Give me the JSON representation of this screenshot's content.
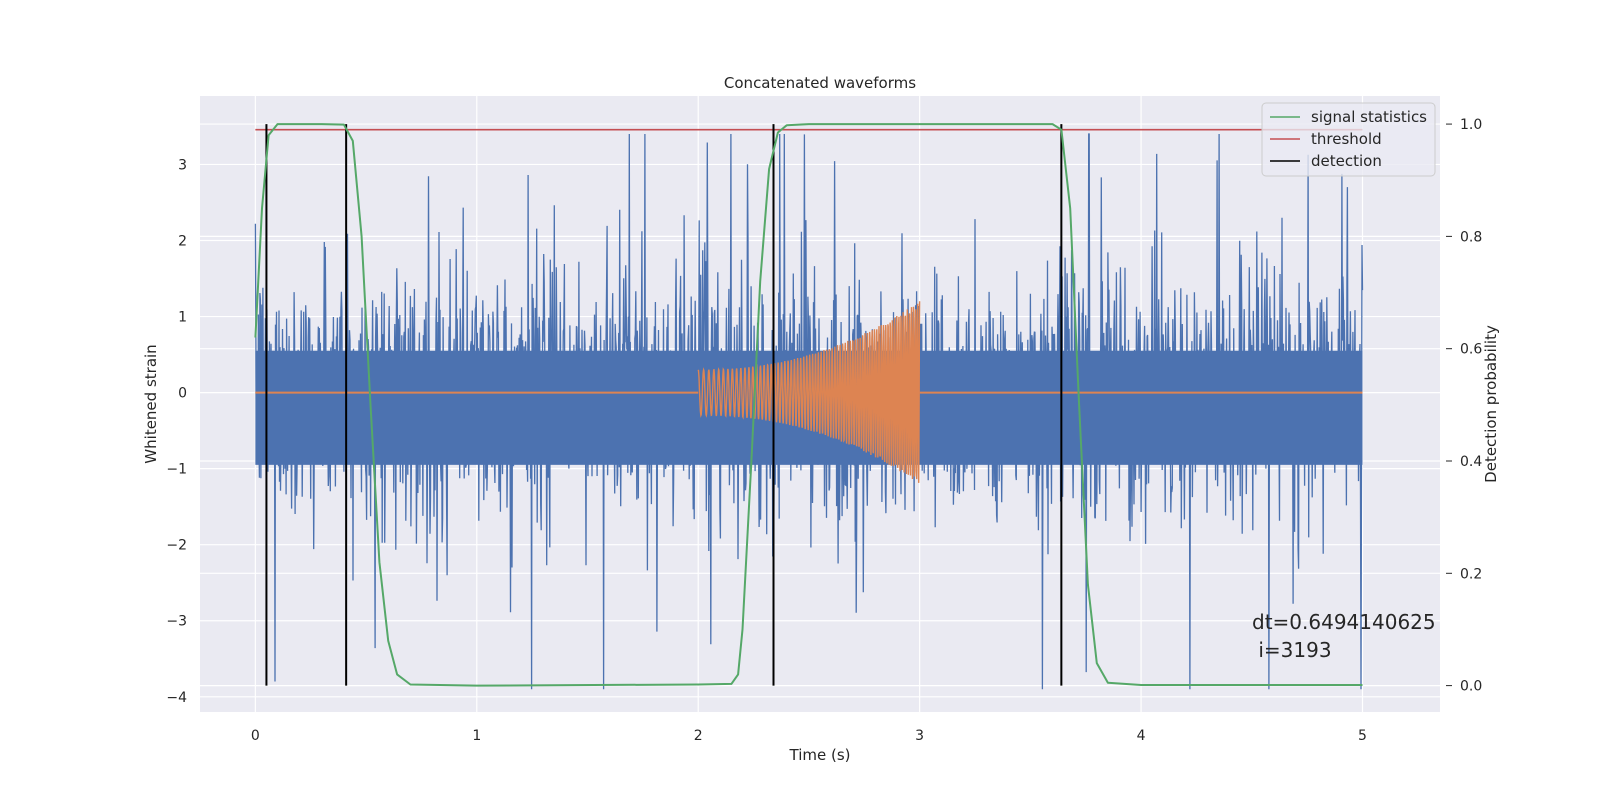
{
  "chart_data": {
    "type": "line",
    "title": "Concatenated waveforms",
    "xlabel": "Time (s)",
    "ylabel": "Whitened strain",
    "y2label": "Detection probability",
    "xlim": [
      -0.25,
      5.35
    ],
    "ylim": [
      -4.2,
      3.9
    ],
    "y2lim": [
      -0.047,
      1.05
    ],
    "xticks": [
      0,
      1,
      2,
      3,
      4,
      5
    ],
    "xtick_labels": [
      "0",
      "1",
      "2",
      "3",
      "4",
      "5"
    ],
    "yticks": [
      -4,
      -3,
      -2,
      -1,
      0,
      1,
      2,
      3
    ],
    "ytick_labels": [
      "−4",
      "−3",
      "−2",
      "−1",
      "0",
      "1",
      "2",
      "3"
    ],
    "y2ticks": [
      0.0,
      0.2,
      0.4,
      0.6,
      0.8,
      1.0
    ],
    "y2tick_labels": [
      "0.0",
      "0.2",
      "0.4",
      "0.6",
      "0.8",
      "1.0"
    ],
    "grid": true,
    "legend_position": "top-right",
    "series": [
      {
        "name": "",
        "axis": "left",
        "color": "#4c72b0",
        "description_kind": "noise",
        "x_range": [
          0,
          5
        ],
        "typical_amplitude": 1.3,
        "max_amplitude": 3.4
      },
      {
        "name": "",
        "axis": "left",
        "color": "#dd8452",
        "kind": "chirp",
        "x": [
          0,
          2.0,
          2.0,
          2.5,
          2.9,
          3.0,
          3.0,
          5.0
        ],
        "envelope": [
          0,
          0,
          0.3,
          0.5,
          1.0,
          1.2,
          0,
          0
        ]
      },
      {
        "name": "signal statistics",
        "axis": "right",
        "color": "#55a868",
        "x": [
          0.0,
          0.03,
          0.06,
          0.1,
          0.3,
          0.4,
          0.44,
          0.48,
          0.52,
          0.56,
          0.6,
          0.64,
          0.7,
          1.0,
          2.0,
          2.15,
          2.18,
          2.2,
          2.24,
          2.28,
          2.32,
          2.36,
          2.4,
          2.5,
          3.0,
          3.6,
          3.64,
          3.68,
          3.72,
          3.76,
          3.8,
          3.85,
          4.0,
          5.0
        ],
        "y": [
          0.62,
          0.85,
          0.98,
          1.0,
          1.0,
          0.999,
          0.97,
          0.8,
          0.5,
          0.22,
          0.08,
          0.02,
          0.002,
          0.0,
          0.002,
          0.003,
          0.02,
          0.1,
          0.4,
          0.72,
          0.92,
          0.985,
          0.998,
          1.0,
          1.0,
          1.0,
          0.99,
          0.85,
          0.5,
          0.18,
          0.04,
          0.005,
          0.001,
          0.001
        ]
      },
      {
        "name": "threshold",
        "axis": "right",
        "color": "#c44e52",
        "x": [
          0,
          5
        ],
        "y": [
          0.99,
          0.99
        ]
      },
      {
        "name": "detection",
        "axis": "right",
        "color": "#000000",
        "kind": "vlines",
        "x": [
          0.05,
          0.41,
          2.34,
          3.64
        ],
        "ymin": 0.0,
        "ymax": 1.0
      }
    ],
    "annotation": {
      "line1": "dt=0.6494140625",
      "line2": " i=3193",
      "x": 4.5,
      "y": -3.0
    }
  }
}
